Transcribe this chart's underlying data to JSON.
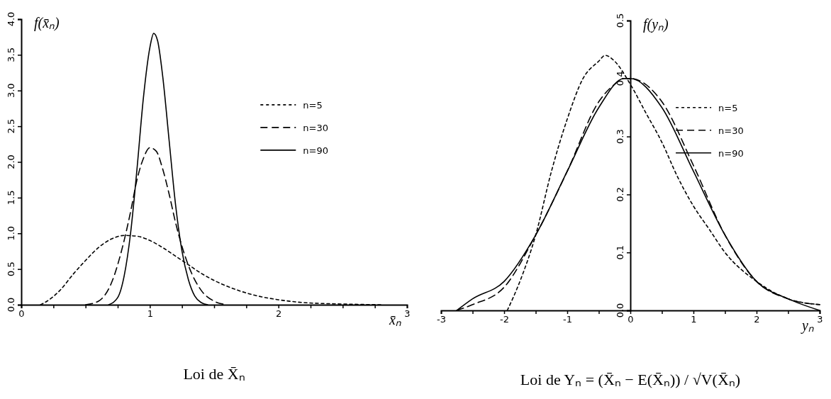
{
  "chart_data": [
    {
      "type": "line",
      "title": "Loi de X̄ₙ",
      "xlabel": "x̄ₙ",
      "ylabel": "f(x̄ₙ)",
      "xlim": [
        0,
        3
      ],
      "ylim": [
        0,
        4
      ],
      "xticks": [
        0,
        {
          "value": 0.25,
          "label": null
        },
        {
          "value": 0.5,
          "label": null
        },
        {
          "value": 0.75,
          "label": null
        },
        1,
        {
          "value": 1.25,
          "label": null
        },
        {
          "value": 1.5,
          "label": null
        },
        {
          "value": 1.75,
          "label": null
        },
        2,
        {
          "value": 2.25,
          "label": null
        },
        {
          "value": 2.5,
          "label": null
        },
        {
          "value": 2.75,
          "label": null
        },
        3
      ],
      "yticks": [
        {
          "value": 0,
          "label": "0.0"
        },
        0.5,
        {
          "value": 1,
          "label": "1.0"
        },
        1.5,
        {
          "value": 2,
          "label": "2.0"
        },
        2.5,
        {
          "value": 3,
          "label": "3.0"
        },
        3.5,
        {
          "value": 4,
          "label": "4.0"
        }
      ],
      "legend": "top right",
      "grid": false,
      "series": [
        {
          "name": "n=5",
          "color": "#000000",
          "line_style": "dotted",
          "x": [
            0.15,
            0.2,
            0.3,
            0.4,
            0.5,
            0.6,
            0.7,
            0.8,
            0.9,
            1.0,
            1.1,
            1.2,
            1.3,
            1.4,
            1.5,
            1.6,
            1.8,
            2.0,
            2.2,
            2.5,
            2.8
          ],
          "values": [
            0.0,
            0.05,
            0.2,
            0.42,
            0.62,
            0.8,
            0.92,
            0.97,
            0.96,
            0.9,
            0.8,
            0.68,
            0.56,
            0.44,
            0.34,
            0.26,
            0.14,
            0.07,
            0.03,
            0.01,
            0.0
          ]
        },
        {
          "name": "n=30",
          "color": "#000000",
          "line_style": "dashed",
          "x": [
            0.5,
            0.6,
            0.7,
            0.8,
            0.85,
            0.9,
            0.95,
            1.0,
            1.05,
            1.1,
            1.15,
            1.2,
            1.3,
            1.4,
            1.5,
            1.6
          ],
          "values": [
            0.0,
            0.05,
            0.3,
            0.9,
            1.3,
            1.75,
            2.05,
            2.2,
            2.15,
            1.9,
            1.55,
            1.15,
            0.55,
            0.2,
            0.05,
            0.0
          ]
        },
        {
          "name": "n=90",
          "color": "#000000",
          "line_style": "solid",
          "x": [
            0.68,
            0.75,
            0.8,
            0.85,
            0.9,
            0.95,
            1.0,
            1.03,
            1.06,
            1.1,
            1.15,
            1.2,
            1.25,
            1.3,
            1.35,
            1.4,
            1.45
          ],
          "values": [
            0.0,
            0.1,
            0.4,
            1.0,
            1.9,
            2.9,
            3.6,
            3.8,
            3.7,
            3.2,
            2.3,
            1.4,
            0.75,
            0.35,
            0.12,
            0.03,
            0.0
          ]
        }
      ]
    },
    {
      "type": "line",
      "title": "Loi de Yₙ = (X̄ₙ − E(X̄ₙ)) / √V(X̄ₙ)",
      "xlabel": "yₙ",
      "ylabel": "f(yₙ)",
      "xlim": [
        -3,
        3
      ],
      "ylim": [
        0,
        0.5
      ],
      "xticks": [
        -3,
        {
          "value": -2.5,
          "label": null
        },
        -2,
        {
          "value": -1.5,
          "label": null
        },
        -1,
        {
          "value": -0.5,
          "label": null
        },
        0,
        {
          "value": 0.5,
          "label": null
        },
        1,
        {
          "value": 1.5,
          "label": null
        },
        2,
        {
          "value": 2.5,
          "label": null
        },
        3
      ],
      "yticks": [
        {
          "value": 0,
          "label": "0.0"
        },
        0.1,
        0.2,
        0.3,
        0.4,
        0.5
      ],
      "legend": "top right",
      "grid": false,
      "series": [
        {
          "name": "n=5",
          "color": "#000000",
          "line_style": "dotted",
          "x": [
            -1.95,
            -1.75,
            -1.5,
            -1.25,
            -1.0,
            -0.75,
            -0.5,
            -0.4,
            -0.25,
            0.0,
            0.25,
            0.5,
            0.75,
            1.0,
            1.25,
            1.5,
            2.0,
            2.5,
            3.0
          ],
          "values": [
            0.0,
            0.05,
            0.13,
            0.24,
            0.33,
            0.4,
            0.43,
            0.44,
            0.43,
            0.39,
            0.34,
            0.29,
            0.23,
            0.18,
            0.14,
            0.1,
            0.05,
            0.02,
            0.01
          ]
        },
        {
          "name": "n=30",
          "color": "#000000",
          "line_style": "dashed",
          "x": [
            -2.75,
            -2.5,
            -2.0,
            -1.5,
            -1.0,
            -0.5,
            -0.25,
            -0.1,
            0.0,
            0.5,
            1.0,
            1.5,
            2.0,
            2.5,
            3.0
          ],
          "values": [
            0.0,
            0.01,
            0.04,
            0.13,
            0.24,
            0.36,
            0.39,
            0.4,
            0.4,
            0.36,
            0.25,
            0.13,
            0.05,
            0.02,
            0.01
          ]
        },
        {
          "name": "n=90",
          "color": "#000000",
          "line_style": "solid",
          "x": [
            -2.75,
            -2.5,
            -2.0,
            -1.5,
            -1.0,
            -0.5,
            -0.1,
            0.0,
            0.5,
            1.0,
            1.5,
            2.0,
            2.5,
            3.0
          ],
          "values": [
            0.0,
            0.02,
            0.05,
            0.13,
            0.24,
            0.35,
            0.4,
            0.4,
            0.35,
            0.24,
            0.13,
            0.05,
            0.02,
            0.0
          ]
        }
      ]
    }
  ]
}
